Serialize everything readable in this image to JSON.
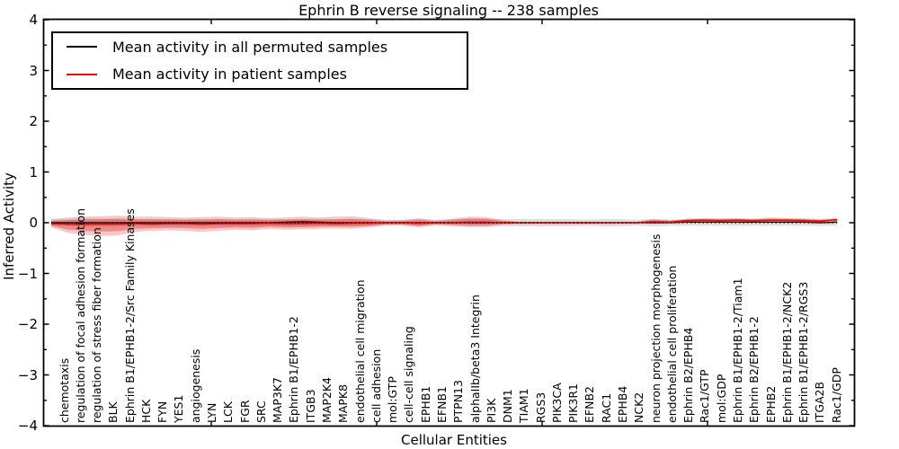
{
  "title": "Ephrin B reverse signaling -- 238 samples",
  "axes": {
    "ylabel": "Inferred Activity",
    "xlabel": "Cellular Entities",
    "yticklabels": [
      "4",
      "3",
      "2",
      "1",
      "0",
      "−1",
      "−2",
      "−3",
      "−4"
    ],
    "ylim": [
      -4,
      4
    ]
  },
  "legend": {
    "items": [
      {
        "label": "Mean activity in all permuted samples",
        "color": "#000000"
      },
      {
        "label": "Mean activity in patient samples",
        "color": "#ff0000"
      }
    ]
  },
  "colors": {
    "patient_line": "#ff0000",
    "permuted_line": "#000000",
    "patient_band": "#dd3333",
    "permuted_band": "#bdbdbd"
  },
  "chart_data": {
    "type": "line",
    "title": "Ephrin B reverse signaling -- 238 samples",
    "xlabel": "Cellular Entities",
    "ylabel": "Inferred Activity",
    "ylim": [
      -4,
      4
    ],
    "grid": false,
    "legend_position": "upper left",
    "zero_reference_line": 0,
    "categories": [
      "chemotaxis",
      "regulation of focal adhesion formation",
      "regulation of stress fiber formation",
      "BLK",
      "Ephrin B1/EPHB1-2/Src Family Kinases",
      "HCK",
      "FYN",
      "YES1",
      "angiogenesis",
      "LYN",
      "LCK",
      "FGR",
      "SRC",
      "MAP3K7",
      "Ephrin B1/EPHB1-2",
      "ITGB3",
      "MAP2K4",
      "MAPK8",
      "endothelial cell migration",
      "cell adhesion",
      "mol:GTP",
      "cell-cell signaling",
      "EPHB1",
      "EFNB1",
      "PTPN13",
      "alphaIIb/beta3 Integrin",
      "PI3K",
      "DNM1",
      "TIAM1",
      "RGS3",
      "PIK3CA",
      "PIK3R1",
      "EFNB2",
      "RAC1",
      "EPHB4",
      "NCK2",
      "neuron projection morphogenesis",
      "endothelial cell proliferation",
      "Ephrin B2/EPHB4",
      "Rac1/GTP",
      "mol:GDP",
      "Ephrin B1/EPHB1-2/Tiam1",
      "Ephrin B2/EPHB1-2",
      "EPHB2",
      "Ephrin B1/EPHB1-2/NCK2",
      "Ephrin B1/EPHB1-2/RGS3",
      "ITGA2B",
      "Rac1/GDP"
    ],
    "series": [
      {
        "name": "Mean activity in all permuted samples",
        "color": "#000000",
        "values": [
          0,
          0,
          0,
          0,
          0,
          0,
          0,
          0,
          0,
          0,
          0,
          0,
          0,
          0,
          0.01,
          0.02,
          0.01,
          0,
          0,
          0,
          0,
          0,
          0,
          0,
          0,
          0,
          0,
          0,
          0,
          0,
          0,
          0,
          0,
          0,
          0,
          0,
          0,
          0,
          0.01,
          0.01,
          0.01,
          0.01,
          0.01,
          0.01,
          0.01,
          0.01,
          0,
          0.01
        ]
      },
      {
        "name": "Mean activity in patient samples",
        "color": "#ff0000",
        "values": [
          -0.02,
          -0.03,
          -0.03,
          -0.03,
          -0.03,
          -0.02,
          -0.03,
          -0.02,
          -0.02,
          -0.03,
          -0.02,
          -0.02,
          -0.02,
          -0.01,
          -0.02,
          -0.02,
          -0.01,
          -0.02,
          -0.01,
          -0.01,
          0,
          0,
          -0.01,
          0,
          0,
          0.01,
          0.01,
          0,
          0,
          0,
          0,
          0,
          0,
          0,
          0,
          0,
          0.02,
          0.01,
          0.04,
          0.05,
          0.04,
          0.05,
          0.04,
          0.05,
          0.05,
          0.04,
          0.03,
          0.06
        ]
      }
    ],
    "bands": [
      {
        "name": "patient activity spread",
        "color": "#dd3333",
        "upper": [
          0.07,
          0.1,
          0.12,
          0.13,
          0.14,
          0.12,
          0.12,
          0.11,
          0.1,
          0.11,
          0.12,
          0.1,
          0.11,
          0.09,
          0.1,
          0.12,
          0.1,
          0.12,
          0.13,
          0.09,
          0.04,
          0.05,
          0.09,
          0.04,
          0.08,
          0.12,
          0.11,
          0.05,
          0.02,
          0.02,
          0.02,
          0.02,
          0.02,
          0.02,
          0.02,
          0.02,
          0.07,
          0.05,
          0.08,
          0.09,
          0.09,
          0.09,
          0.08,
          0.1,
          0.09,
          0.09,
          0.07,
          0.09
        ],
        "lower": [
          -0.09,
          -0.2,
          -0.24,
          -0.26,
          -0.25,
          -0.18,
          -0.16,
          -0.15,
          -0.16,
          -0.18,
          -0.16,
          -0.14,
          -0.15,
          -0.12,
          -0.14,
          -0.13,
          -0.12,
          -0.11,
          -0.12,
          -0.09,
          -0.05,
          -0.05,
          -0.09,
          -0.04,
          -0.06,
          -0.08,
          -0.08,
          -0.04,
          -0.02,
          -0.02,
          -0.02,
          -0.02,
          -0.02,
          -0.02,
          -0.01,
          -0.01,
          -0.02,
          0.0,
          0.0,
          0.01,
          0.0,
          0.01,
          0.0,
          0.01,
          0.01,
          0.0,
          0.0,
          0.02
        ]
      },
      {
        "name": "permuted activity spread",
        "color": "#bdbdbd",
        "upper": [
          0.06,
          0.07,
          0.08,
          0.08,
          0.08,
          0.07,
          0.07,
          0.07,
          0.07,
          0.07,
          0.07,
          0.07,
          0.07,
          0.07,
          0.07,
          0.07,
          0.07,
          0.07,
          0.07,
          0.07,
          0.06,
          0.06,
          0.07,
          0.06,
          0.07,
          0.08,
          0.08,
          0.07,
          0.07,
          0.07,
          0.07,
          0.07,
          0.06,
          0.07,
          0.07,
          0.06,
          0.07,
          0.06,
          0.06,
          0.06,
          0.06,
          0.06,
          0.06,
          0.06,
          0.06,
          0.06,
          0.06,
          0.06
        ],
        "lower": [
          -0.06,
          -0.07,
          -0.08,
          -0.08,
          -0.08,
          -0.07,
          -0.07,
          -0.07,
          -0.07,
          -0.07,
          -0.07,
          -0.07,
          -0.07,
          -0.07,
          -0.07,
          -0.07,
          -0.07,
          -0.07,
          -0.07,
          -0.07,
          -0.06,
          -0.06,
          -0.07,
          -0.06,
          -0.07,
          -0.08,
          -0.08,
          -0.07,
          -0.07,
          -0.07,
          -0.07,
          -0.07,
          -0.06,
          -0.07,
          -0.07,
          -0.06,
          -0.07,
          -0.06,
          -0.06,
          -0.06,
          -0.06,
          -0.06,
          -0.06,
          -0.06,
          -0.06,
          -0.06,
          -0.06,
          -0.06
        ]
      }
    ]
  }
}
